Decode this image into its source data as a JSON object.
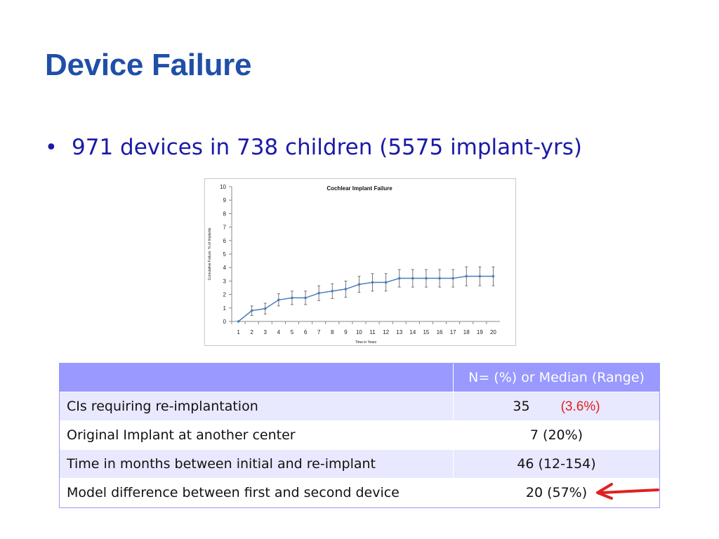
{
  "slide": {
    "title": "Device Failure",
    "bullet": "971 devices in 738 children (5575 implant-yrs)"
  },
  "chart_data": {
    "type": "line",
    "title": "Cochlear Implant Failure",
    "xlabel": "Time in Years",
    "ylabel": "Cumulative Failure: % of Implants",
    "x": [
      1,
      2,
      3,
      4,
      5,
      6,
      7,
      8,
      9,
      10,
      11,
      12,
      13,
      14,
      15,
      16,
      17,
      18,
      19,
      20
    ],
    "xticks": [
      "1",
      "2",
      "3",
      "4",
      "5",
      "6",
      "7",
      "8",
      "9",
      "10",
      "11",
      "12",
      "13",
      "14",
      "15",
      "16",
      "17",
      "18",
      "19",
      "20"
    ],
    "yticks": [
      "0",
      "1",
      "2",
      "3",
      "4",
      "5",
      "6",
      "7",
      "8",
      "9",
      "10"
    ],
    "ylim": [
      0,
      10
    ],
    "series": [
      {
        "values": [
          0,
          0.8,
          0.95,
          1.6,
          1.75,
          1.75,
          2.1,
          2.25,
          2.4,
          2.75,
          2.9,
          2.9,
          3.2,
          3.2,
          3.2,
          3.2,
          3.2,
          3.35,
          3.35,
          3.35
        ],
        "error": [
          0,
          0.35,
          0.4,
          0.45,
          0.5,
          0.5,
          0.55,
          0.55,
          0.6,
          0.6,
          0.65,
          0.65,
          0.65,
          0.65,
          0.65,
          0.65,
          0.65,
          0.7,
          0.7,
          0.7
        ],
        "color": "#4a7ebb"
      }
    ],
    "grid": false,
    "legend": "none"
  },
  "table": {
    "header": [
      "",
      "N= (%) or Median (Range)"
    ],
    "rows": [
      {
        "label": "CIs requiring re-implantation",
        "value": "35",
        "extra": "(3.6%)"
      },
      {
        "label": "Original Implant at another center",
        "value": "7 (20%)"
      },
      {
        "label": "Time in months between initial and re-implant",
        "value": "46 (12-154)"
      },
      {
        "label": "Model difference between first and second device",
        "value": "20 (57%)"
      }
    ],
    "header_color": "#9999ff",
    "stripe_color": "#e8e8ff",
    "highlight_color": "#e02020"
  }
}
